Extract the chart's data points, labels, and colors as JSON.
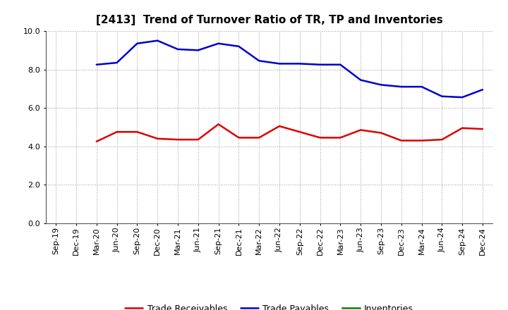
{
  "title": "[2413]  Trend of Turnover Ratio of TR, TP and Inventories",
  "labels": [
    "Sep-19",
    "Dec-19",
    "Mar-20",
    "Jun-20",
    "Sep-20",
    "Dec-20",
    "Mar-21",
    "Jun-21",
    "Sep-21",
    "Dec-21",
    "Mar-22",
    "Jun-22",
    "Sep-22",
    "Dec-22",
    "Mar-23",
    "Jun-23",
    "Sep-23",
    "Dec-23",
    "Mar-24",
    "Jun-24",
    "Sep-24",
    "Dec-24"
  ],
  "trade_receivables": [
    null,
    null,
    4.25,
    4.75,
    4.75,
    4.4,
    4.35,
    4.35,
    5.15,
    4.45,
    4.45,
    5.05,
    4.75,
    4.45,
    4.45,
    4.85,
    4.7,
    4.3,
    4.3,
    4.35,
    4.95,
    4.9
  ],
  "trade_payables": [
    null,
    null,
    8.25,
    8.35,
    9.35,
    9.5,
    9.05,
    9.0,
    9.35,
    9.2,
    8.45,
    8.3,
    8.3,
    8.25,
    8.25,
    7.45,
    7.2,
    7.1,
    7.1,
    6.6,
    6.55,
    6.95
  ],
  "inventories": [
    null,
    null,
    null,
    null,
    null,
    null,
    null,
    null,
    null,
    null,
    null,
    null,
    null,
    null,
    null,
    null,
    null,
    null,
    null,
    null,
    null,
    null
  ],
  "tr_color": "#dd0000",
  "tp_color": "#0000cc",
  "inv_color": "#008800",
  "background_color": "#ffffff",
  "grid_color": "#999999",
  "ylim": [
    0.0,
    10.0
  ],
  "yticks": [
    0.0,
    2.0,
    4.0,
    6.0,
    8.0,
    10.0
  ],
  "legend_labels": [
    "Trade Receivables",
    "Trade Payables",
    "Inventories"
  ],
  "title_fontsize": 11,
  "tick_fontsize": 8,
  "legend_fontsize": 9,
  "linewidth": 1.8
}
